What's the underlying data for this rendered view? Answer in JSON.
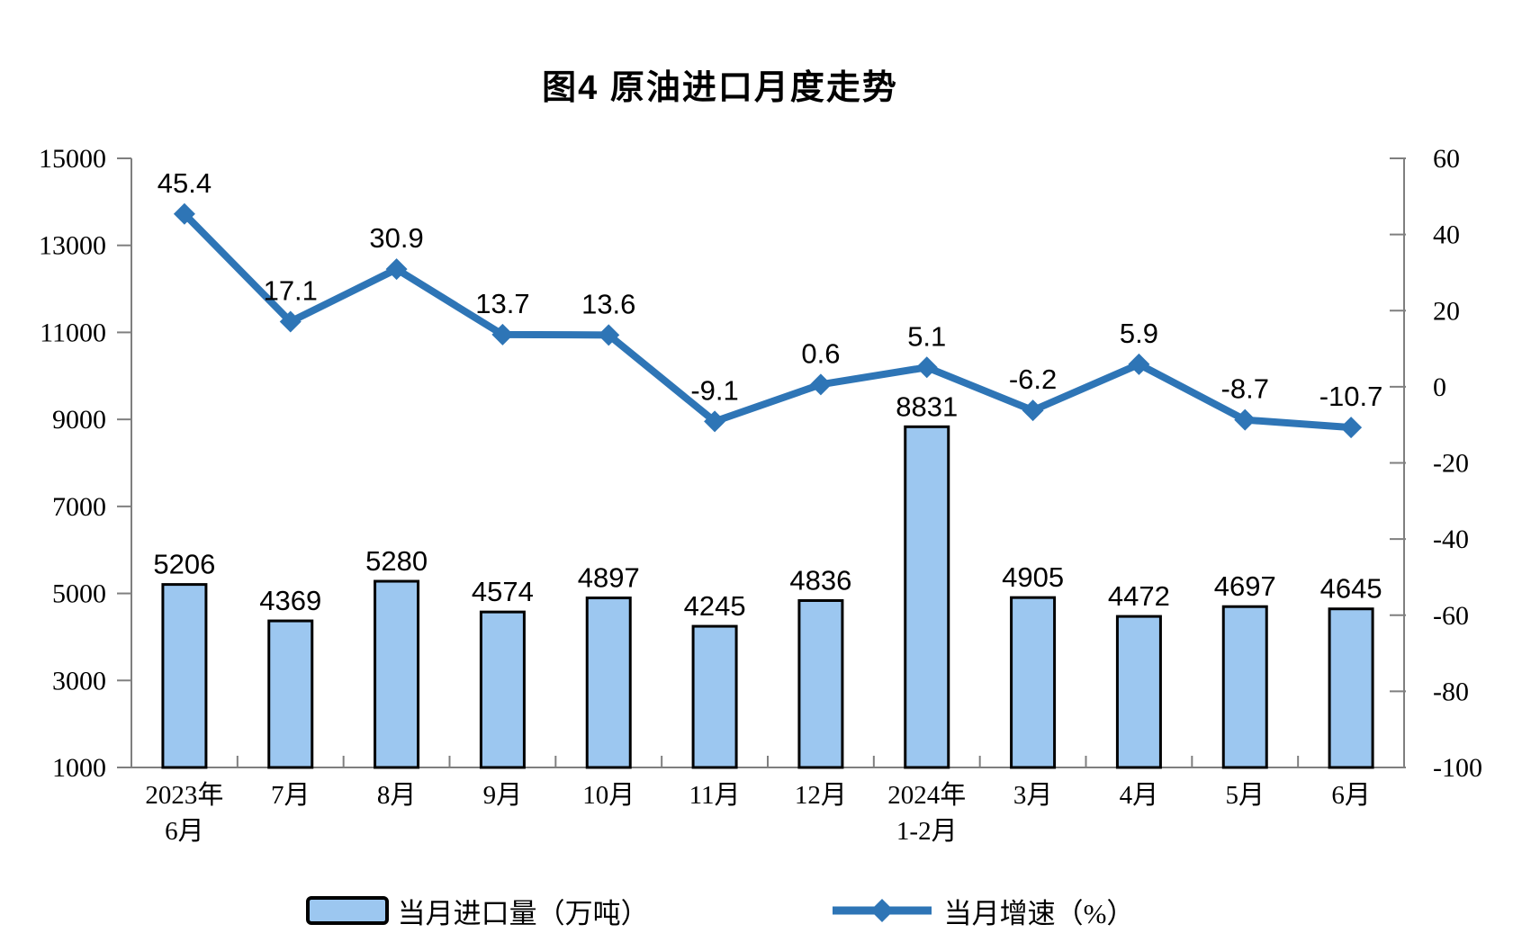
{
  "title": "图4 原油进口月度走势",
  "legend": {
    "bar_label": "当月进口量（万吨）",
    "line_label": "当月增速（%）"
  },
  "chart_data": {
    "type": "bar",
    "title": "图4 原油进口月度走势",
    "categories": [
      [
        "2023年",
        "6月"
      ],
      [
        "7月"
      ],
      [
        "8月"
      ],
      [
        "9月"
      ],
      [
        "10月"
      ],
      [
        "11月"
      ],
      [
        "12月"
      ],
      [
        "2024年",
        "1-2月"
      ],
      [
        "3月"
      ],
      [
        "4月"
      ],
      [
        "5月"
      ],
      [
        "6月"
      ]
    ],
    "series": [
      {
        "name": "当月进口量（万吨）",
        "type": "bar",
        "axis": "left",
        "values": [
          5206,
          4369,
          5280,
          4574,
          4897,
          4245,
          4836,
          8831,
          4905,
          4472,
          4697,
          4645
        ],
        "labels": [
          "5206",
          "4369",
          "5280",
          "4574",
          "4897",
          "4245",
          "4836",
          "8831",
          "4905",
          "4472",
          "4697",
          "4645"
        ]
      },
      {
        "name": "当月增速（%）",
        "type": "line",
        "axis": "right",
        "values": [
          45.4,
          17.1,
          30.9,
          13.7,
          13.6,
          -9.1,
          0.6,
          5.1,
          -6.2,
          5.9,
          -8.7,
          -10.7
        ],
        "labels": [
          "45.4",
          "17.1",
          "30.9",
          "13.7",
          "13.6",
          "-9.1",
          "0.6",
          "5.1",
          "-6.2",
          "5.9",
          "-8.7",
          "-10.7"
        ]
      }
    ],
    "left_axis": {
      "min": 1000,
      "max": 15000,
      "step": 2000,
      "ticks": [
        15000,
        13000,
        11000,
        9000,
        7000,
        5000,
        3000,
        1000
      ]
    },
    "right_axis": {
      "min": -100,
      "max": 60,
      "step": 20,
      "ticks": [
        60,
        40,
        20,
        0,
        -20,
        -40,
        -60,
        -80,
        -100
      ]
    },
    "grid": false,
    "legend_position": "bottom",
    "colors": {
      "bar_fill": "#9CC7F0",
      "bar_stroke": "#000000",
      "line": "#2E75B6",
      "axis": "#7F7F7F",
      "text": "#000000"
    }
  }
}
